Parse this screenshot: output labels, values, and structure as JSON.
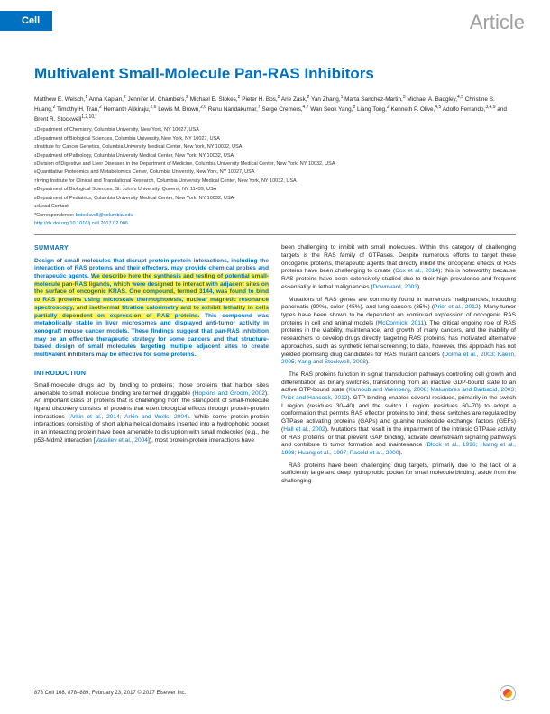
{
  "header": {
    "journal": "Cell",
    "article_type": "Article"
  },
  "title": "Multivalent Small-Molecule Pan-RAS Inhibitors",
  "authors_html": "Matthew E. Welsch,<sup>1</sup> Anna Kaplan,<sup>2</sup> Jennifer M. Chambers,<sup>2</sup> Michael E. Stokes,<sup>2</sup> Pieter H. Bos,<sup>2</sup> Arie Zask,<sup>2</sup> Yan Zhang,<sup>1</sup> Marta Sanchez-Martin,<sup>3</sup> Michael A. Badgley,<sup>4,5</sup> Christine S. Huang,<sup>2</sup> Timothy H. Tran,<sup>2</sup> Hemanth Akkiraju,<sup>2,6</sup> Lewis M. Brown,<sup>2,6</sup> Renu Nandakumar,<sup>7</sup> Serge Cremers,<sup>4,7</sup> Wan Seok Yang,<sup>8</sup> Liang Tong,<sup>2</sup> Kenneth P. Olive,<sup>4,5</sup> Adolfo Ferrando,<sup>3,4,9</sup> and Brent R. Stockwell<sup>1,2,10,*</sup>",
  "affiliations": [
    "<sup>1</sup>Department of Chemistry, Columbia University, New York, NY 10027, USA",
    "<sup>2</sup>Department of Biological Sciences, Columbia University, New York, NY 10027, USA",
    "<sup>3</sup>Institute for Cancer Genetics, Columbia University Medical Center, New York, NY 10032, USA",
    "<sup>4</sup>Department of Pathology, Columbia University Medical Center, New York, NY 10032, USA",
    "<sup>5</sup>Division of Digestive and Liver Diseases in the Department of Medicine, Columbia University Medical Center, New York, NY 10032, USA",
    "<sup>6</sup>Quantitative Proteomics and Metabolomics Center, Columbia University, New York, NY 10027, USA",
    "<sup>7</sup>Irving Institute for Clinical and Translational Research, Columbia University Medical Center, New York, NY 10032, USA",
    "<sup>8</sup>Department of Biological Sciences, St. John's University, Queens, NY 11439, USA",
    "<sup>9</sup>Department of Pediatrics, Columbia University Medical Center, New York, NY 10032, USA",
    "<sup>10</sup>Lead Contact"
  ],
  "correspondence": {
    "label": "*Correspondence: ",
    "email": "bstockwell@columbia.edu",
    "doi": "http://dx.doi.org/10.1016/j.cell.2017.02.006"
  },
  "summary": {
    "head": "SUMMARY",
    "pre": "Design of small molecules that disrupt protein-protein interactions, including the interaction of RAS proteins and their effectors, may provide chemical probes and therapeutic agents. ",
    "highlight": "We describe here the synthesis and testing of potential small-molecule pan-RAS ligands, which were designed to interact with adjacent sites on the surface of oncogenic KRAS. One compound, termed 3144, was found to bind to RAS proteins using microscale thermophoresis, nuclear magnetic resonance spectroscopy, and isothermal titration calorimetry and to exhibit lethality in cells partially dependent on expression of RAS proteins.",
    "post": " This compound was metabolically stable in liver microsomes and displayed anti-tumor activity in xenograft mouse cancer models. These findings suggest that pan-RAS inhibition may be an effective therapeutic strategy for some cancers and that structure-based design of small molecules targeting multiple adjacent sites to create multivalent inhibitors may be effective for some proteins."
  },
  "introduction": {
    "head": "INTRODUCTION",
    "p1": "Small-molecule drugs act by binding to proteins; those proteins that harbor sites amenable to small molecule binding are termed druggable (<span class='cite'>Hopkins and Groom, 2002</span>). An important class of proteins that is challenging from the standpoint of small-molecule ligand discovery consists of proteins that exert biological effects through protein-protein interactions (<span class='cite'>Arkin et al., 2014; Arkin and Wells, 2004</span>). While some protein-protein interactions consisting of short alpha helical domains inserted into a hydrophobic pocket in an interacting protein have been amenable to disruption with small molecules (e.g., the p53-Mdm2 interaction [<span class='cite'>Vassilev et al., 2004</span>]), most protein-protein interactions have"
  },
  "right_column": {
    "p1": "been challenging to inhibit with small molecules. Within this category of challenging targets is the RAS family of GTPases. Despite numerous efforts to target these oncogenic proteins, therapeutic agents that directly inhibit the oncogenic effects of RAS proteins have been challenging to create (<span class='cite'>Cox et al., 2014</span>); this is noteworthy because RAS proteins have been extensively studied due to their high prevalence and frequent essentiality in lethal malignancies (<span class='cite'>Downward, 2003</span>).",
    "p2": "Mutations of RAS genes are commonly found in numerous malignancies, including pancreatic (90%), colon (45%), and lung cancers (35%) (<span class='cite'>Prior et al., 2012</span>). Many tumor types have been shown to be dependent on continued expression of oncogenic RAS proteins in cell and animal models (<span class='cite'>McCormick, 2011</span>). The critical ongoing role of RAS proteins in the viability, maintenance, and growth of many cancers, and the inability of researchers to develop drugs directly targeting RAS proteins, has motivated alternative approaches, such as synthetic lethal screening; to date, however, this approach has not yielded promising drug candidates for RAS mutant cancers (<span class='cite'>Dolma et al., 2003; Kaelin, 2005; Yang and Stockwell, 2008</span>).",
    "p3": "The RAS proteins function in signal transduction pathways controlling cell growth and differentiation as binary switches, transitioning from an inactive GDP-bound state to an active GTP-bound state (<span class='cite'>Karnoub and Weinberg, 2008; Malumbres and Barbacid, 2003; Prior and Hancock, 2012</span>). GTP binding enables several residues, primarily in the switch I region (residues 30–40) and the switch II region (residues 60–70) to adopt a conformation that permits RAS effector proteins to bind; these switches are regulated by GTPase activating proteins (GAPs) and guanine nucleotide exchange factors (GEFs) (<span class='cite'>Hall et al., 2002</span>). Mutations that result in the impairment of the intrinsic GTPase activity of RAS proteins, or that prevent GAP binding, activate downstream signaling pathways and contribute to tumor formation and maintenance (<span class='cite'>Block et al., 1996; Huang et al., 1998; Huang et al., 1997; Pacold et al., 2000</span>).",
    "p4": "RAS proteins have been challenging drug targets, primarily due to the lack of a sufficiently large and deep hydrophobic pocket for small molecule binding, aside from the challenging"
  },
  "footer": {
    "left": "878   Cell 168, 878–889, February 23, 2017 © 2017 Elsevier Inc.",
    "crossmark_label": "CrossMark"
  }
}
